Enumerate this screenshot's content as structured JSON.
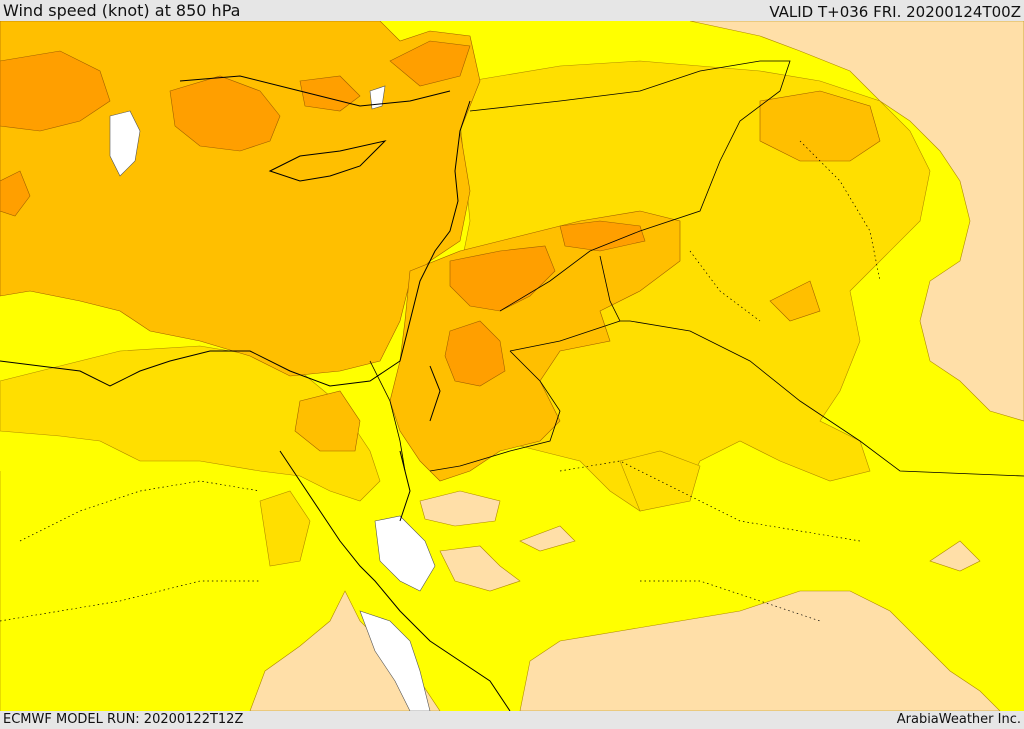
{
  "header": {
    "title": "Wind speed (knot) at 850 hPa",
    "valid": "VALID T+036 FRI. 20200124T00Z"
  },
  "footer": {
    "model_run": "ECMWF MODEL RUN: 20200122T12Z",
    "credit": "ArabiaWeather Inc."
  },
  "colors": {
    "speed_0_5": "#ffffff",
    "speed_5_10": "#ffdfa8",
    "speed_10_15": "#ffff00",
    "speed_15_20": "#ffdf00",
    "speed_20_25": "#ffbf00",
    "speed_25_30": "#ff9f00",
    "coastline": "#000000"
  }
}
